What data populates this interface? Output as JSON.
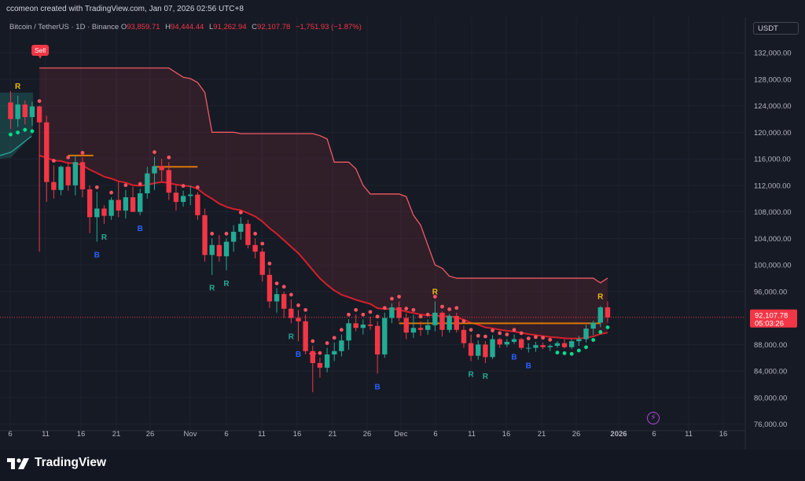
{
  "credit": "ccomeon created with TradingView.com, Jan 07, 2026 02:56 UTC+8",
  "symbol": "Bitcoin / TetherUS · 1D · Binance",
  "ohlc": {
    "o_label": "O",
    "o": "93,859.71",
    "h_label": "H",
    "h": "94,444.44",
    "l_label": "L",
    "l": "91,262.94",
    "c_label": "C",
    "c": "92,107.78",
    "change": "−1,751.93 (−1.87%)"
  },
  "currency": "USDT",
  "last_price": "92,107.78",
  "countdown": "05:03:26",
  "brand": "TradingView",
  "colors": {
    "bg": "#161a25",
    "grid": "#1f2330",
    "up": "#22ab94",
    "down": "#f23645",
    "dot_down": "#f7525f",
    "dot_up": "#00e08c",
    "baseline": "#d97706",
    "band": "#d33c4a",
    "upper_band": "#ef5a63"
  },
  "chart_data": {
    "type": "candlestick",
    "y_axis_ticks": [
      "132,000.00",
      "128,000.00",
      "124,000.00",
      "120,000.00",
      "116,000.00",
      "112,000.00",
      "108,000.00",
      "104,000.00",
      "100,000.00",
      "96,000.00",
      "88,000.00",
      "84,000.00",
      "80,000.00",
      "76,000.00"
    ],
    "x_axis_ticks": [
      "6",
      "11",
      "16",
      "21",
      "26",
      "Nov",
      "6",
      "11",
      "16",
      "21",
      "26",
      "Dec",
      "6",
      "11",
      "16",
      "21",
      "26",
      "2026",
      "6",
      "11",
      "16"
    ],
    "ylim": [
      75000,
      134500
    ],
    "signal_label": "Sell",
    "candles": [
      {
        "o": 124500,
        "h": 126200,
        "l": 120500,
        "c": 122000
      },
      {
        "o": 122000,
        "h": 125500,
        "l": 120800,
        "c": 124200
      },
      {
        "o": 124200,
        "h": 124800,
        "l": 121200,
        "c": 122300
      },
      {
        "o": 122300,
        "h": 124600,
        "l": 121000,
        "c": 123900
      },
      {
        "o": 123900,
        "h": 124000,
        "l": 102000,
        "c": 121500
      },
      {
        "o": 121500,
        "h": 122500,
        "l": 109500,
        "c": 112500
      },
      {
        "o": 112500,
        "h": 115000,
        "l": 110000,
        "c": 111300
      },
      {
        "o": 111300,
        "h": 115000,
        "l": 110500,
        "c": 114800
      },
      {
        "o": 114800,
        "h": 115500,
        "l": 111200,
        "c": 112000
      },
      {
        "o": 112000,
        "h": 116500,
        "l": 110500,
        "c": 115500
      },
      {
        "o": 115500,
        "h": 116200,
        "l": 110200,
        "c": 111400
      },
      {
        "o": 111400,
        "h": 112000,
        "l": 104800,
        "c": 107200
      },
      {
        "o": 107200,
        "h": 111000,
        "l": 103500,
        "c": 108500
      },
      {
        "o": 108500,
        "h": 109000,
        "l": 106200,
        "c": 107400
      },
      {
        "o": 107400,
        "h": 110200,
        "l": 106800,
        "c": 109800
      },
      {
        "o": 109800,
        "h": 112500,
        "l": 107200,
        "c": 108200
      },
      {
        "o": 108200,
        "h": 111300,
        "l": 107000,
        "c": 110200
      },
      {
        "o": 110200,
        "h": 111800,
        "l": 108500,
        "c": 108000
      },
      {
        "o": 108000,
        "h": 111500,
        "l": 107500,
        "c": 110800
      },
      {
        "o": 110800,
        "h": 114800,
        "l": 110000,
        "c": 113800
      },
      {
        "o": 113800,
        "h": 116300,
        "l": 111300,
        "c": 114900
      },
      {
        "o": 114900,
        "h": 116000,
        "l": 112500,
        "c": 114300
      },
      {
        "o": 114300,
        "h": 115500,
        "l": 109800,
        "c": 110900
      },
      {
        "o": 110900,
        "h": 112000,
        "l": 108200,
        "c": 109500
      },
      {
        "o": 109500,
        "h": 111200,
        "l": 108800,
        "c": 110400
      },
      {
        "o": 110400,
        "h": 112000,
        "l": 109000,
        "c": 110600
      },
      {
        "o": 110600,
        "h": 111000,
        "l": 106800,
        "c": 107500
      },
      {
        "o": 107500,
        "h": 108500,
        "l": 100500,
        "c": 101500
      },
      {
        "o": 101500,
        "h": 104000,
        "l": 98500,
        "c": 103000
      },
      {
        "o": 103000,
        "h": 104500,
        "l": 100500,
        "c": 101300
      },
      {
        "o": 101300,
        "h": 104000,
        "l": 99200,
        "c": 103500
      },
      {
        "o": 103500,
        "h": 106000,
        "l": 102000,
        "c": 105000
      },
      {
        "o": 105000,
        "h": 107200,
        "l": 103800,
        "c": 106200
      },
      {
        "o": 106200,
        "h": 106800,
        "l": 102500,
        "c": 103000
      },
      {
        "o": 103000,
        "h": 104000,
        "l": 101000,
        "c": 102000
      },
      {
        "o": 102000,
        "h": 102500,
        "l": 97500,
        "c": 98500
      },
      {
        "o": 98500,
        "h": 99500,
        "l": 93500,
        "c": 94500
      },
      {
        "o": 94500,
        "h": 96500,
        "l": 92800,
        "c": 95600
      },
      {
        "o": 95600,
        "h": 96000,
        "l": 92000,
        "c": 93400
      },
      {
        "o": 93400,
        "h": 94800,
        "l": 91200,
        "c": 92000
      },
      {
        "o": 92000,
        "h": 93200,
        "l": 88500,
        "c": 91500
      },
      {
        "o": 91500,
        "h": 92500,
        "l": 86500,
        "c": 87000
      },
      {
        "o": 87000,
        "h": 87800,
        "l": 80800,
        "c": 85200
      },
      {
        "o": 85200,
        "h": 86000,
        "l": 83000,
        "c": 84500
      },
      {
        "o": 84500,
        "h": 87500,
        "l": 83800,
        "c": 86500
      },
      {
        "o": 86500,
        "h": 88300,
        "l": 85500,
        "c": 87000
      },
      {
        "o": 87000,
        "h": 89500,
        "l": 86200,
        "c": 88600
      },
      {
        "o": 88600,
        "h": 91800,
        "l": 87200,
        "c": 91200
      },
      {
        "o": 91200,
        "h": 92500,
        "l": 90000,
        "c": 90500
      },
      {
        "o": 90500,
        "h": 91800,
        "l": 89500,
        "c": 91000
      },
      {
        "o": 91000,
        "h": 92200,
        "l": 90200,
        "c": 90800
      },
      {
        "o": 90800,
        "h": 91500,
        "l": 83600,
        "c": 86500
      },
      {
        "o": 86500,
        "h": 92800,
        "l": 86000,
        "c": 92000
      },
      {
        "o": 92000,
        "h": 94200,
        "l": 91200,
        "c": 93600
      },
      {
        "o": 93600,
        "h": 94500,
        "l": 91500,
        "c": 92000
      },
      {
        "o": 92000,
        "h": 92700,
        "l": 88800,
        "c": 89800
      },
      {
        "o": 89800,
        "h": 92500,
        "l": 89000,
        "c": 90500
      },
      {
        "o": 90500,
        "h": 91500,
        "l": 89300,
        "c": 90200
      },
      {
        "o": 90200,
        "h": 91800,
        "l": 89500,
        "c": 90900
      },
      {
        "o": 90900,
        "h": 94500,
        "l": 90000,
        "c": 92800
      },
      {
        "o": 92800,
        "h": 93000,
        "l": 89200,
        "c": 90200
      },
      {
        "o": 90200,
        "h": 92600,
        "l": 89800,
        "c": 92300
      },
      {
        "o": 92300,
        "h": 92800,
        "l": 89800,
        "c": 90200
      },
      {
        "o": 90200,
        "h": 90800,
        "l": 87500,
        "c": 88200
      },
      {
        "o": 88200,
        "h": 89500,
        "l": 85500,
        "c": 86300
      },
      {
        "o": 86300,
        "h": 88600,
        "l": 85700,
        "c": 88000
      },
      {
        "o": 88000,
        "h": 88500,
        "l": 85200,
        "c": 86100
      },
      {
        "o": 86100,
        "h": 89400,
        "l": 85800,
        "c": 88800
      },
      {
        "o": 88800,
        "h": 89000,
        "l": 87500,
        "c": 88000
      },
      {
        "o": 88000,
        "h": 88800,
        "l": 87600,
        "c": 88400
      },
      {
        "o": 88400,
        "h": 89500,
        "l": 88100,
        "c": 88800
      },
      {
        "o": 88800,
        "h": 89000,
        "l": 87200,
        "c": 87500
      },
      {
        "o": 87500,
        "h": 88200,
        "l": 86800,
        "c": 87500
      },
      {
        "o": 87500,
        "h": 88400,
        "l": 86900,
        "c": 87900
      },
      {
        "o": 87900,
        "h": 88300,
        "l": 87300,
        "c": 87600
      },
      {
        "o": 87600,
        "h": 88000,
        "l": 87000,
        "c": 87800
      },
      {
        "o": 87800,
        "h": 88500,
        "l": 87500,
        "c": 88200
      },
      {
        "o": 88200,
        "h": 88800,
        "l": 87400,
        "c": 87600
      },
      {
        "o": 87600,
        "h": 88800,
        "l": 87300,
        "c": 88500
      },
      {
        "o": 88500,
        "h": 89300,
        "l": 87800,
        "c": 88800
      },
      {
        "o": 88800,
        "h": 91000,
        "l": 88300,
        "c": 90400
      },
      {
        "o": 90400,
        "h": 91600,
        "l": 89400,
        "c": 91300
      },
      {
        "o": 91300,
        "h": 93800,
        "l": 90600,
        "c": 93600
      },
      {
        "o": 93600,
        "h": 94500,
        "l": 91300,
        "c": 92100
      }
    ],
    "labels": [
      {
        "i": 1,
        "text": "R",
        "pos": "above",
        "color": "#f0b90b"
      },
      {
        "i": 12,
        "text": "B",
        "pos": "below",
        "color": "#2962ff"
      },
      {
        "i": 13,
        "text": "R",
        "pos": "below",
        "color": "#22ab94"
      },
      {
        "i": 18,
        "text": "B",
        "pos": "below",
        "color": "#2962ff"
      },
      {
        "i": 28,
        "text": "R",
        "pos": "below",
        "color": "#22ab94"
      },
      {
        "i": 30,
        "text": "R",
        "pos": "below",
        "color": "#22ab94"
      },
      {
        "i": 39,
        "text": "R",
        "pos": "below",
        "color": "#22ab94"
      },
      {
        "i": 40,
        "text": "B",
        "pos": "below",
        "color": "#2962ff"
      },
      {
        "i": 51,
        "text": "B",
        "pos": "below",
        "color": "#2962ff"
      },
      {
        "i": 59,
        "text": "R",
        "pos": "above",
        "color": "#f0b90b"
      },
      {
        "i": 64,
        "text": "R",
        "pos": "below",
        "color": "#22ab94"
      },
      {
        "i": 66,
        "text": "R",
        "pos": "below",
        "color": "#22ab94"
      },
      {
        "i": 70,
        "text": "B",
        "pos": "below",
        "color": "#2962ff"
      },
      {
        "i": 72,
        "text": "B",
        "pos": "below",
        "color": "#2962ff"
      },
      {
        "i": 82,
        "text": "R",
        "pos": "above",
        "color": "#f0b90b"
      }
    ]
  }
}
